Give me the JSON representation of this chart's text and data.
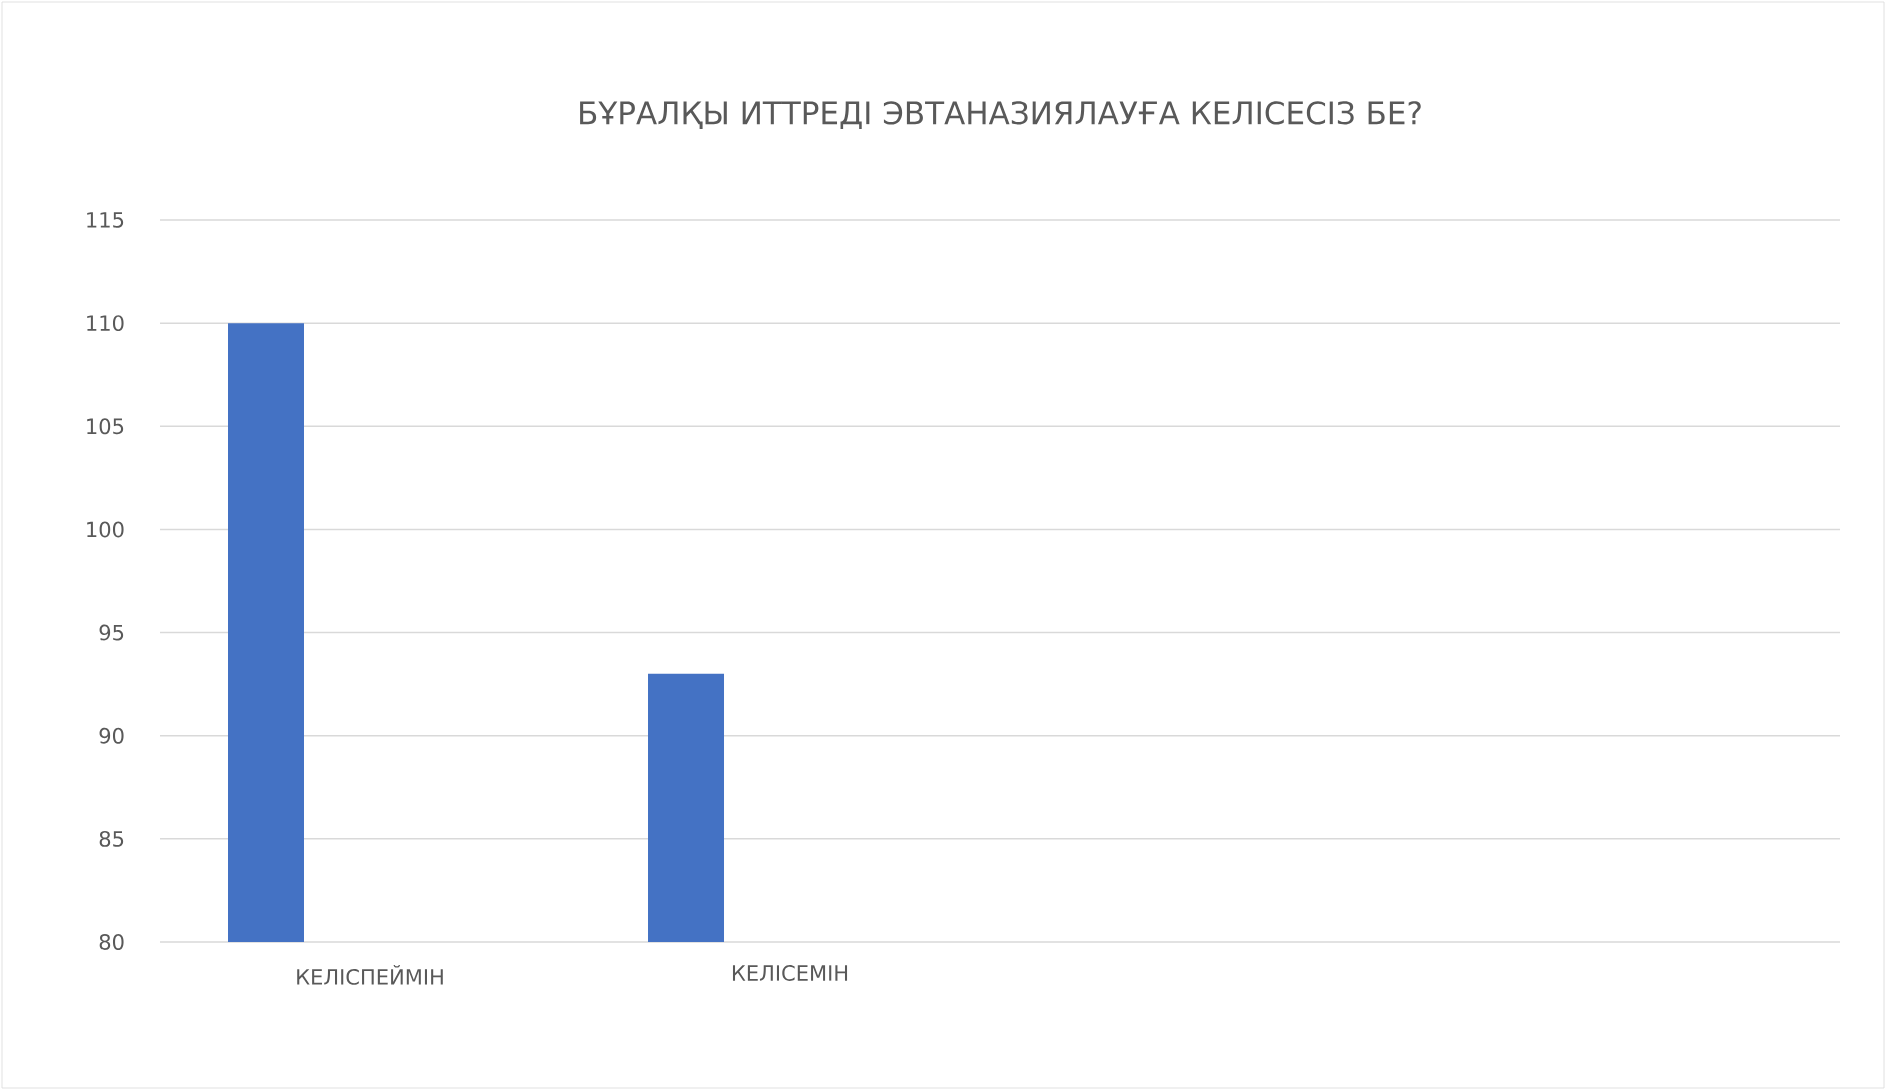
{
  "chart_data": {
    "type": "bar",
    "title": "БҰРАЛҚЫ ИТТРЕДІ ЭВТАНАЗИЯЛАУҒА  КЕЛІСЕСІЗ БЕ?",
    "categories": [
      "КЕЛІСПЕЙМІН",
      "КЕЛІСЕМІН",
      null,
      null
    ],
    "values": [
      110,
      93,
      null,
      null
    ],
    "color": "#4472c4",
    "ylim": [
      80,
      115
    ],
    "yticks": [
      80,
      85,
      90,
      95,
      100,
      105,
      110,
      115
    ],
    "grid": "y"
  }
}
